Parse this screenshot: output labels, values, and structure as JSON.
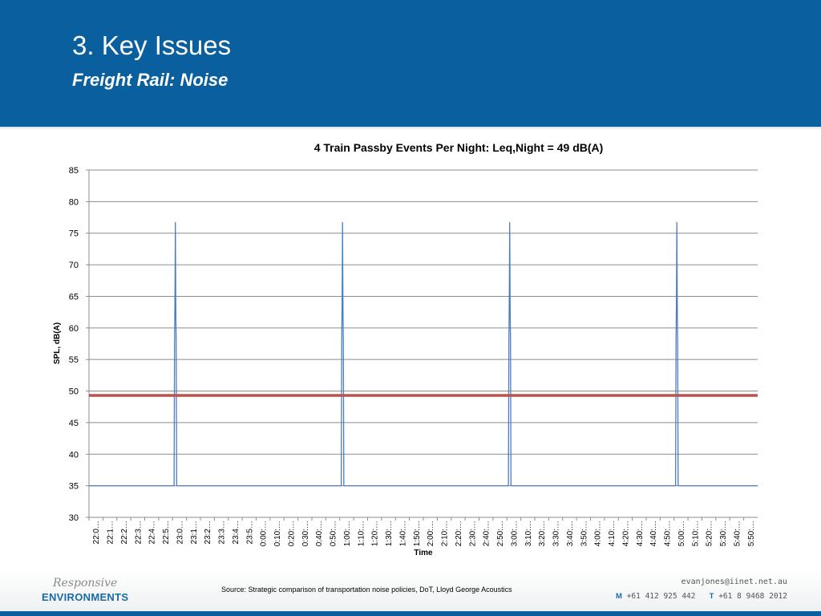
{
  "slide": {
    "title": "3. Key Issues",
    "subtitle": "Freight Rail: Noise"
  },
  "colors": {
    "header": "#0a5f9e",
    "series_line": "#4a7ebf",
    "leq_line": "#c0504d",
    "gridline": "#8c8c8c"
  },
  "chart_data": {
    "type": "line",
    "title": "4 Train Passby Events Per Night: Leq,Night = 49 dB(A)",
    "xlabel": "Time",
    "ylabel": "SPL, dB(A)",
    "ylim": [
      30,
      85
    ],
    "yticks": [
      30,
      35,
      40,
      45,
      50,
      55,
      60,
      65,
      70,
      75,
      80,
      85
    ],
    "grid": true,
    "legend": "none",
    "x_range": [
      "22:00",
      "6:00"
    ],
    "x_tick_labels": [
      "22:0…",
      "22:1…",
      "22:2…",
      "22:3…",
      "22:4…",
      "22:5…",
      "23:0…",
      "23:1…",
      "23:2…",
      "23:3…",
      "23:4…",
      "23:5…",
      "0:00:…",
      "0:10:…",
      "0:20:…",
      "0:30:…",
      "0:40:…",
      "0:50:…",
      "1:00:…",
      "1:10:…",
      "1:20:…",
      "1:30:…",
      "1:40:…",
      "1:50:…",
      "2:00:…",
      "2:10:…",
      "2:20:…",
      "2:30:…",
      "2:40:…",
      "2:50:…",
      "3:00:…",
      "3:10:…",
      "3:20:…",
      "3:30:…",
      "3:40:…",
      "3:50:…",
      "4:00:…",
      "4:10:…",
      "4:20:…",
      "4:30:…",
      "4:40:…",
      "4:50:…",
      "5:00:…",
      "5:10:…",
      "5:20:…",
      "5:30:…",
      "5:40:…",
      "5:50:…"
    ],
    "series": [
      {
        "background_level": 35,
        "events": [
          {
            "time": "23:02",
            "peak": 76.7
          },
          {
            "time": "1:02",
            "peak": 76.7
          },
          {
            "time": "3:02",
            "peak": 76.7
          },
          {
            "time": "5:02",
            "peak": 76.7
          }
        ]
      },
      {
        "constant": 49.3
      }
    ]
  },
  "footer": {
    "logo_top": "Responsive",
    "logo_bottom": "ENVIRONMENTS",
    "source": "Source: Strategic comparison of transportation noise policies, DoT, Lloyd George Acoustics",
    "email": "evanjones@iinet.net.au",
    "mobile_label": "M",
    "mobile": "+61 412 925 442",
    "phone_label": "T",
    "phone": "+61 8 9468 2012"
  }
}
